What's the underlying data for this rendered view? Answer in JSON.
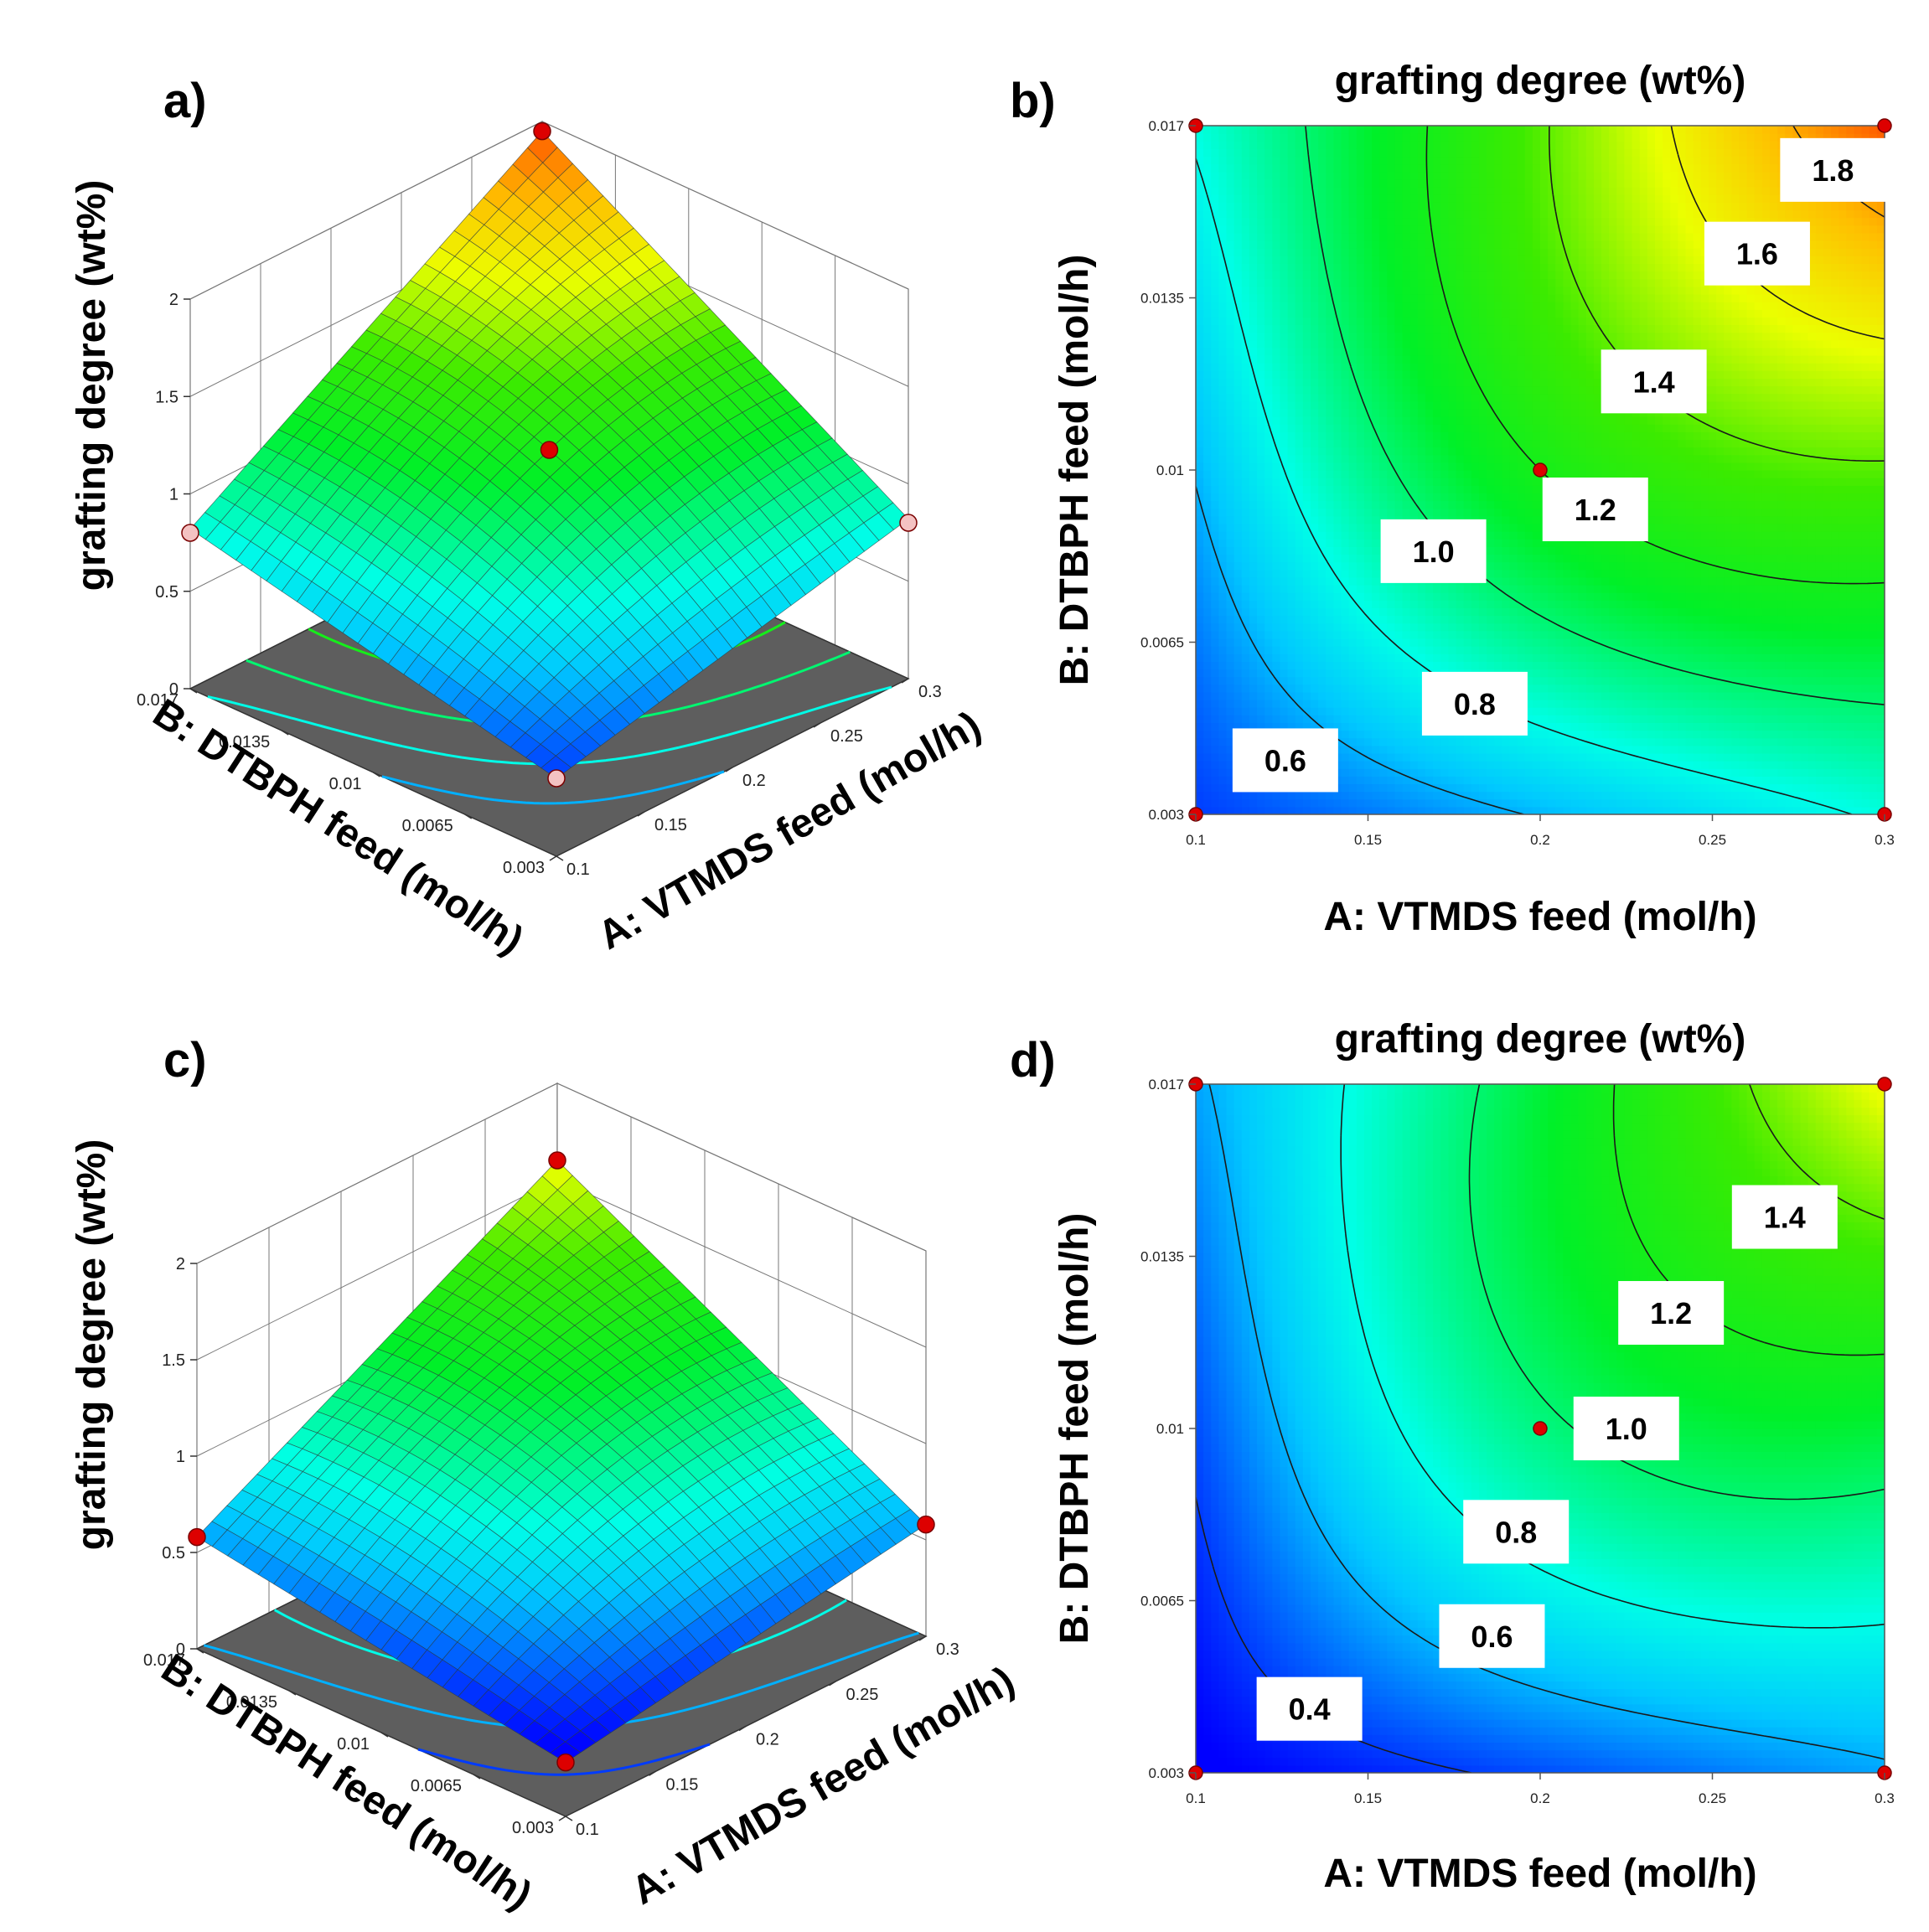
{
  "chart_data": [
    {
      "panel": "a)",
      "type": "surface3d",
      "zlabel": "grafting degree (wt%)",
      "xlabel": "A: VTMDS feed (mol/h)",
      "ylabel": "B: DTBPH feed (mol/h)",
      "x_ticks": [
        "0.1",
        "0.15",
        "0.2",
        "0.25",
        "0.3"
      ],
      "y_ticks": [
        "0.003",
        "0.0065",
        "0.01",
        "0.0135",
        "0.017"
      ],
      "z_ticks": [
        "0",
        "0.5",
        "1",
        "1.5",
        "2"
      ],
      "xlim": [
        0.1,
        0.3
      ],
      "ylim": [
        0.003,
        0.017
      ],
      "zlim": [
        0,
        2
      ],
      "model": {
        "x_min": 0.1,
        "x_max": 0.3,
        "y_min": 0.003,
        "y_max": 0.017,
        "c00": 0.4,
        "c10": 0.82,
        "c01": 0.82,
        "c11": 1.95,
        "center": 1.2
      },
      "design_points": [
        {
          "A": 0.1,
          "B": 0.003,
          "value": 0.4
        },
        {
          "A": 0.3,
          "B": 0.003,
          "value": 0.8
        },
        {
          "A": 0.1,
          "B": 0.017,
          "value": 0.8
        },
        {
          "A": 0.3,
          "B": 0.017,
          "value": 1.95
        },
        {
          "A": 0.2,
          "B": 0.01,
          "value": 1.2
        }
      ]
    },
    {
      "panel": "b)",
      "type": "contour",
      "title": "grafting degree (wt%)",
      "xlabel": "A: VTMDS feed (mol/h)",
      "ylabel": "B: DTBPH feed (mol/h)",
      "x_ticks": [
        "0.1",
        "0.15",
        "0.2",
        "0.25",
        "0.3"
      ],
      "y_ticks": [
        "0.003",
        "0.0065",
        "0.01",
        "0.0135",
        "0.017"
      ],
      "xlim": [
        0.1,
        0.3
      ],
      "ylim": [
        0.003,
        0.017
      ],
      "model": {
        "x_min": 0.1,
        "x_max": 0.3,
        "y_min": 0.003,
        "y_max": 0.017,
        "c00": 0.4,
        "c10": 0.82,
        "c01": 0.82,
        "c11": 1.95,
        "center": 1.2
      },
      "color_range": [
        0.3,
        2.0
      ],
      "levels": [
        0.6,
        0.8,
        1.0,
        1.2,
        1.4,
        1.6,
        1.8
      ],
      "contour_labels": [
        {
          "text": "0.6",
          "A": 0.126,
          "B": 0.0041
        },
        {
          "text": "0.8",
          "A": 0.181,
          "B": 0.00525
        },
        {
          "text": "1.0",
          "A": 0.169,
          "B": 0.00835
        },
        {
          "text": "1.2",
          "A": 0.216,
          "B": 0.0092
        },
        {
          "text": "1.4",
          "A": 0.233,
          "B": 0.0118
        },
        {
          "text": "1.6",
          "A": 0.263,
          "B": 0.0144
        },
        {
          "text": "1.8",
          "A": 0.285,
          "B": 0.0161
        }
      ],
      "design_points": [
        {
          "A": 0.1,
          "B": 0.003
        },
        {
          "A": 0.3,
          "B": 0.003
        },
        {
          "A": 0.1,
          "B": 0.017
        },
        {
          "A": 0.3,
          "B": 0.017
        },
        {
          "A": 0.2,
          "B": 0.01
        }
      ]
    },
    {
      "panel": "c)",
      "type": "surface3d",
      "zlabel": "grafting degree (wt%)",
      "xlabel": "A: VTMDS feed (mol/h)",
      "ylabel": "B: DTBPH feed (mol/h)",
      "x_ticks": [
        "0.1",
        "0.15",
        "0.2",
        "0.25",
        "0.3"
      ],
      "y_ticks": [
        "0.003",
        "0.0065",
        "0.01",
        "0.0135",
        "0.017"
      ],
      "z_ticks": [
        "0",
        "0.5",
        "1",
        "1.5",
        "2"
      ],
      "xlim": [
        0.1,
        0.3
      ],
      "ylim": [
        0.003,
        0.017
      ],
      "zlim": [
        0,
        2
      ],
      "model": {
        "x_min": 0.1,
        "x_max": 0.3,
        "y_min": 0.003,
        "y_max": 0.017,
        "c00": 0.28,
        "c10": 0.58,
        "c01": 0.58,
        "c11": 1.6,
        "center": 0.97
      },
      "design_points": [
        {
          "A": 0.1,
          "B": 0.003,
          "value": 0.28
        },
        {
          "A": 0.3,
          "B": 0.003,
          "value": 0.58
        },
        {
          "A": 0.1,
          "B": 0.017,
          "value": 0.58
        },
        {
          "A": 0.3,
          "B": 0.017,
          "value": 1.6
        }
      ]
    },
    {
      "panel": "d)",
      "type": "contour",
      "title": "grafting degree (wt%)",
      "xlabel": "A: VTMDS feed (mol/h)",
      "ylabel": "B: DTBPH feed (mol/h)",
      "x_ticks": [
        "0.1",
        "0.15",
        "0.2",
        "0.25",
        "0.3"
      ],
      "y_ticks": [
        "0.003",
        "0.0065",
        "0.01",
        "0.0135",
        "0.017"
      ],
      "xlim": [
        0.1,
        0.3
      ],
      "ylim": [
        0.003,
        0.017
      ],
      "model": {
        "x_min": 0.1,
        "x_max": 0.3,
        "y_min": 0.003,
        "y_max": 0.017,
        "c00": 0.28,
        "c10": 0.58,
        "c01": 0.58,
        "c11": 1.6,
        "center": 0.97
      },
      "color_range": [
        0.3,
        2.0
      ],
      "levels": [
        0.4,
        0.6,
        0.8,
        1.0,
        1.2,
        1.4
      ],
      "contour_labels": [
        {
          "text": "0.4",
          "A": 0.133,
          "B": 0.0043
        },
        {
          "text": "0.6",
          "A": 0.186,
          "B": 0.00578
        },
        {
          "text": "0.8",
          "A": 0.193,
          "B": 0.0079
        },
        {
          "text": "1.0",
          "A": 0.225,
          "B": 0.01
        },
        {
          "text": "1.2",
          "A": 0.238,
          "B": 0.01235
        },
        {
          "text": "1.4",
          "A": 0.271,
          "B": 0.0143
        }
      ],
      "design_points": [
        {
          "A": 0.1,
          "B": 0.003
        },
        {
          "A": 0.3,
          "B": 0.003
        },
        {
          "A": 0.1,
          "B": 0.017
        },
        {
          "A": 0.3,
          "B": 0.017
        },
        {
          "A": 0.2,
          "B": 0.01
        }
      ]
    }
  ]
}
